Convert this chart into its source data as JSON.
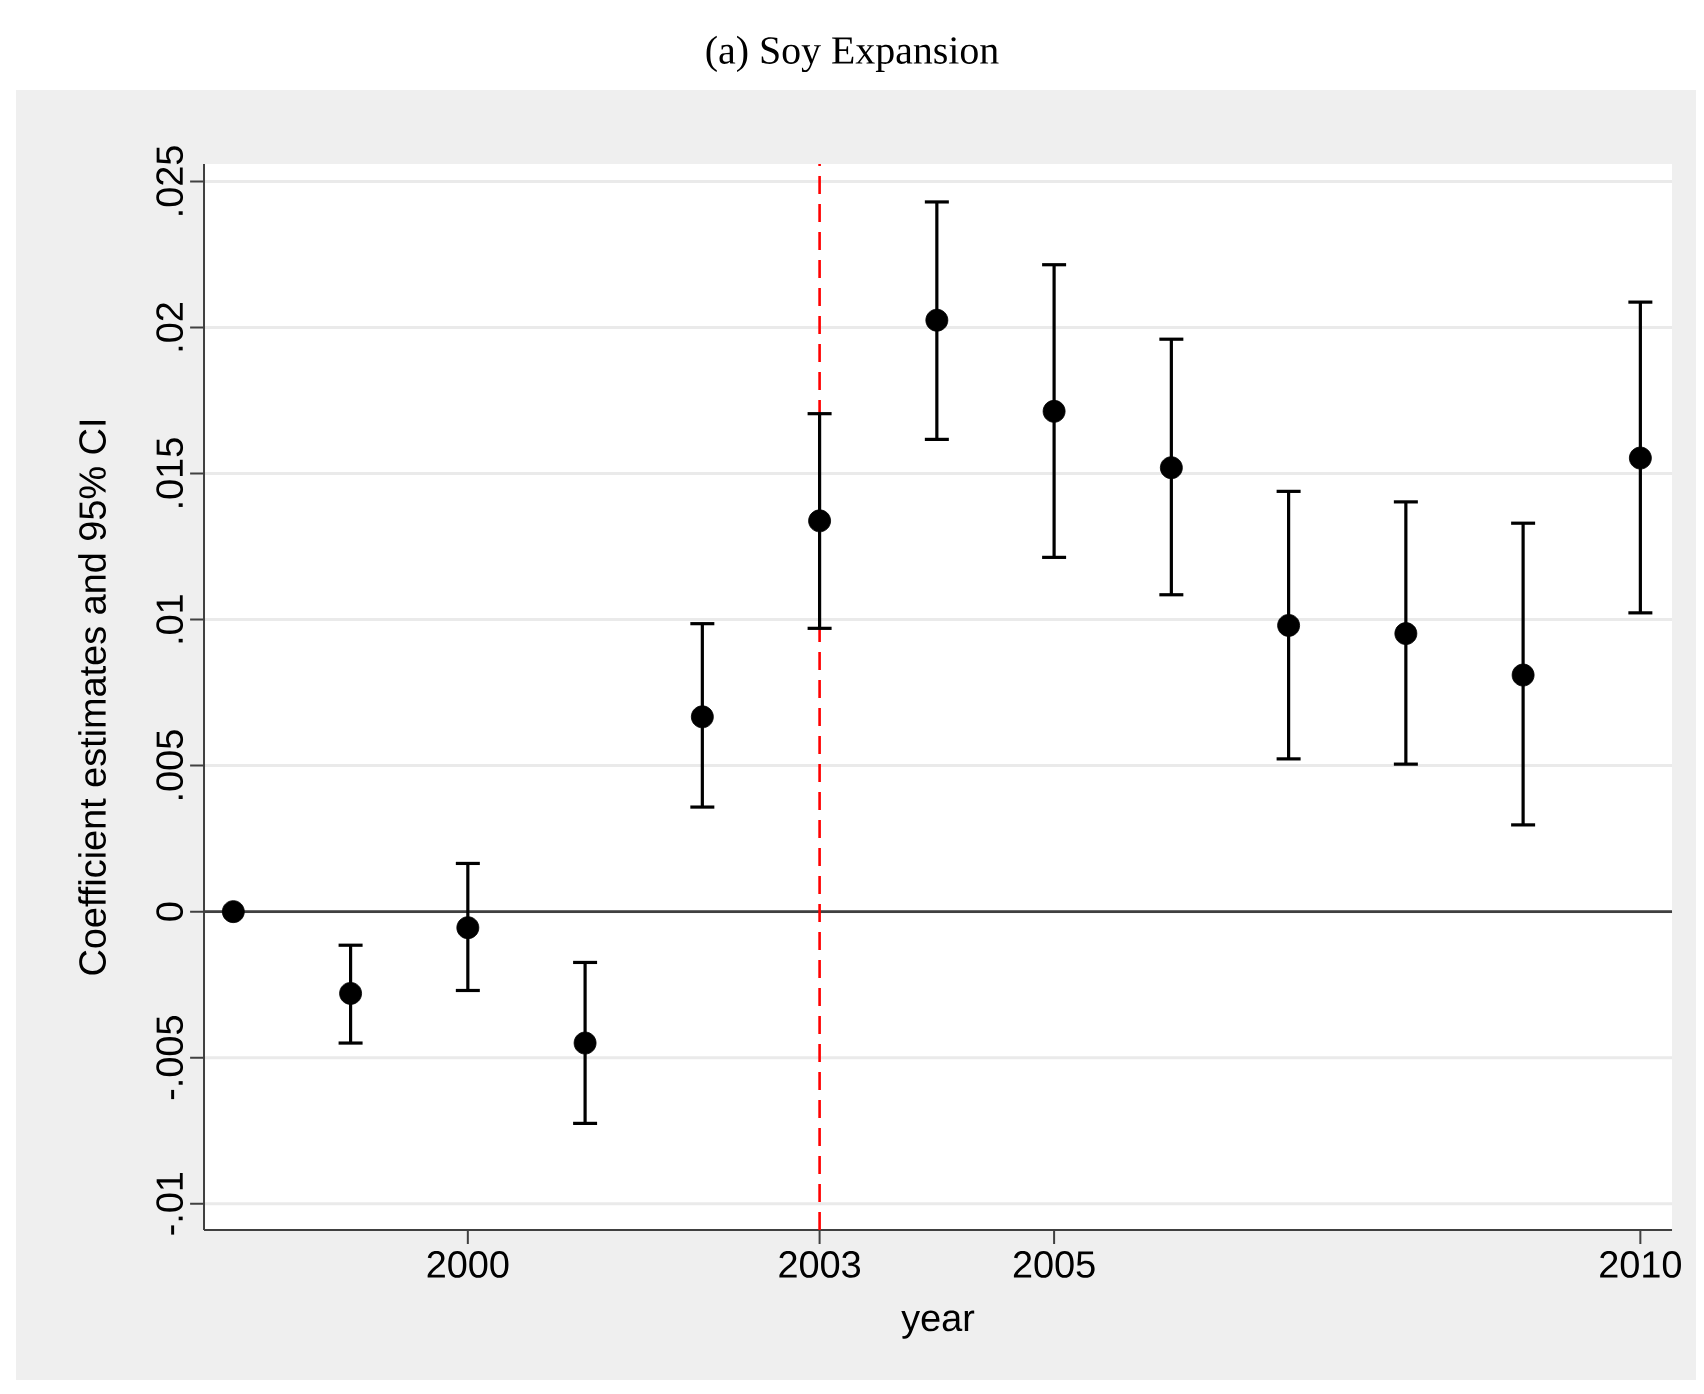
{
  "chart_data": {
    "type": "scatter",
    "title": "(a) Soy Expansion",
    "xlabel": "year",
    "ylabel": "Coefficient estimates and 95% CI",
    "x": [
      1998,
      1999,
      2000,
      2001,
      2002,
      2003,
      2004,
      2005,
      2006,
      2007,
      2008,
      2009,
      2010
    ],
    "values": [
      0,
      -0.0028,
      -0.00055,
      -0.0045,
      0.00667,
      0.01338,
      0.02025,
      0.01713,
      0.0152,
      0.0098,
      0.00952,
      0.0081,
      0.01553
    ],
    "errors": [
      null,
      [
        -0.0045,
        -0.00115
      ],
      [
        -0.0027,
        0.00165
      ],
      [
        -0.00725,
        -0.00174
      ],
      [
        0.00358,
        0.00986
      ],
      [
        0.0097,
        0.01705
      ],
      [
        0.01617,
        0.0243
      ],
      [
        0.01213,
        0.02215
      ],
      [
        0.01085,
        0.0196
      ],
      [
        0.00523,
        0.01439
      ],
      [
        0.00505,
        0.01403
      ],
      [
        0.00297,
        0.0133
      ],
      [
        0.01023,
        0.02087
      ]
    ],
    "color": "#000000",
    "marker": "circle",
    "xlim": [
      1997.75,
      2010.27
    ],
    "ylim": [
      -0.0109,
      0.0256
    ],
    "xticks": [
      2000,
      2003,
      2005,
      2010
    ],
    "yticks": [
      {
        "value": -0.01,
        "label": "-.01"
      },
      {
        "value": -0.005,
        "label": "-.005"
      },
      {
        "value": 0,
        "label": "0"
      },
      {
        "value": 0.005,
        "label": ".005"
      },
      {
        "value": 0.01,
        "label": ".01"
      },
      {
        "value": 0.015,
        "label": ".015"
      },
      {
        "value": 0.02,
        "label": ".02"
      },
      {
        "value": 0.025,
        "label": ".025"
      }
    ],
    "grid": "y",
    "ref_lines": [
      {
        "axis": "y",
        "value": 0,
        "color": "#404040",
        "line_style": "solid"
      },
      {
        "axis": "x",
        "value": 2003,
        "color": "#ff0000",
        "line_style": "dashed"
      }
    ]
  }
}
